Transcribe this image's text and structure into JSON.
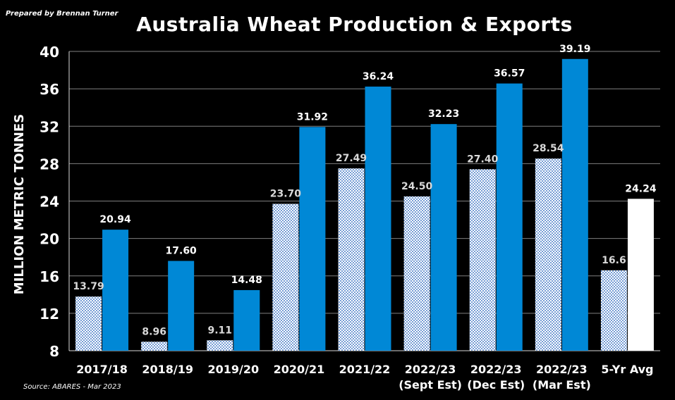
{
  "credit": "Prepared by Brennan Turner",
  "source": "Source: ABARES - Mar 2023",
  "colors": {
    "background": "#000000",
    "export_bar": "#0088d6",
    "avg_export_bar": "#ffffff",
    "production_pattern_bg": "#ffffff",
    "production_pattern_fg": "#4a7ec8",
    "grid": "#7f7f7f"
  },
  "chart_data": {
    "type": "bar",
    "title": "Australia Wheat Production & Exports",
    "ylabel": "MILLION METRIC TONNES",
    "xlabel": "",
    "ylim": [
      8,
      40
    ],
    "yticks": [
      "8",
      "12",
      "16",
      "20",
      "24",
      "28",
      "32",
      "36",
      "40"
    ],
    "grid": true,
    "categories": [
      [
        "2017/18"
      ],
      [
        "2018/19"
      ],
      [
        "2019/20"
      ],
      [
        "2020/21"
      ],
      [
        "2021/22"
      ],
      [
        "2022/23",
        "(Sept Est)"
      ],
      [
        "2022/23",
        "(Dec Est)"
      ],
      [
        "2022/23",
        "(Mar Est)"
      ],
      [
        "5-Yr Avg"
      ]
    ],
    "series": [
      {
        "style": "patterned",
        "values": [
          13.79,
          8.96,
          9.11,
          23.7,
          27.49,
          24.5,
          27.4,
          28.54,
          16.6
        ],
        "labels": [
          "13.79",
          "8.96",
          "9.11",
          "23.70",
          "27.49",
          "24.50",
          "27.40",
          "28.54",
          "16.6"
        ]
      },
      {
        "style": "solid",
        "values": [
          20.94,
          17.6,
          14.48,
          31.92,
          36.24,
          32.23,
          36.57,
          39.19,
          24.24
        ],
        "labels": [
          "20.94",
          "17.60",
          "14.48",
          "31.92",
          "36.24",
          "32.23",
          "36.57",
          "39.19",
          "24.24"
        ]
      }
    ]
  }
}
